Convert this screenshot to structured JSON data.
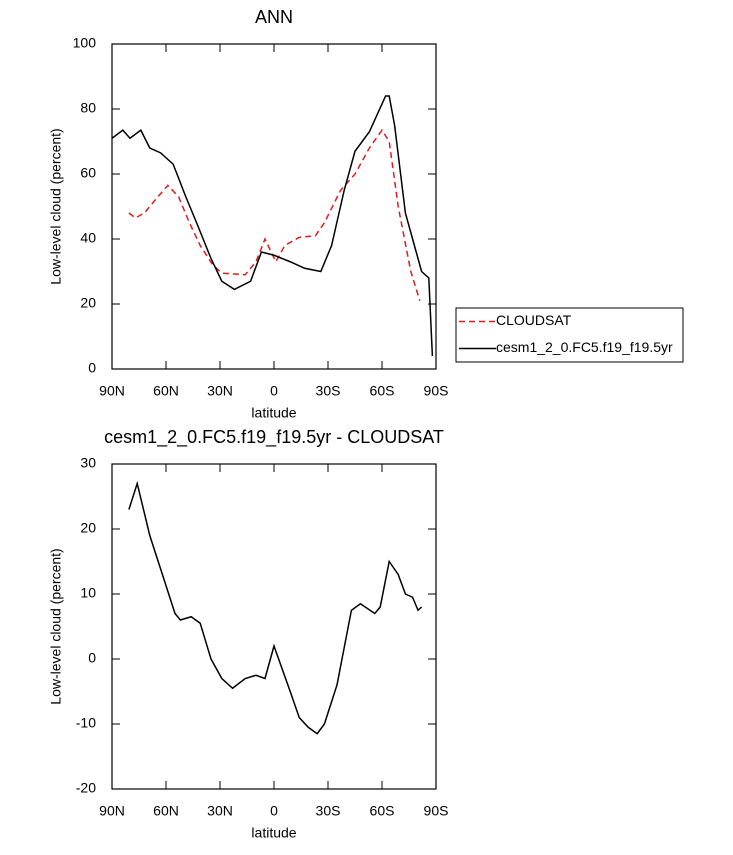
{
  "chart_data": [
    {
      "type": "line",
      "title": "ANN",
      "xlabel": "latitude",
      "ylabel": "Low-level cloud (percent)",
      "xlim": [
        90,
        -90
      ],
      "xticks": [
        {
          "value": 90,
          "label": "90N"
        },
        {
          "value": 60,
          "label": "60N"
        },
        {
          "value": 30,
          "label": "30N"
        },
        0,
        {
          "value": -30,
          "label": "30S"
        },
        {
          "value": -60,
          "label": "60S"
        },
        {
          "value": -90,
          "label": "90S"
        }
      ],
      "ylim": [
        0,
        100
      ],
      "yticks": [
        0,
        20,
        40,
        60,
        80,
        100
      ],
      "legend": "right",
      "series": [
        {
          "name": "CLOUDSAT",
          "color": "#e41a1c",
          "dash": "dashed",
          "x": [
            80.6,
            77,
            72,
            66,
            59,
            53,
            47,
            41,
            34,
            29,
            16,
            10,
            5,
            -1,
            -6,
            -14,
            -23,
            -28,
            -37,
            -45,
            -53,
            -60,
            -64,
            -69,
            -76,
            -81
          ],
          "values": [
            48,
            46.5,
            48,
            52,
            56.5,
            53,
            45,
            38,
            32,
            29.5,
            29,
            33,
            40,
            33,
            38,
            40.5,
            41,
            45,
            55,
            60,
            68,
            73.5,
            70,
            50,
            30,
            21
          ]
        },
        {
          "name": "cesm1_2_0.FC5.f19_f19.5yr",
          "color": "#000000",
          "dash": "solid",
          "x": [
            90,
            84,
            80,
            74,
            69,
            63,
            56,
            49,
            43,
            35,
            29,
            22,
            13,
            7,
            0,
            -9,
            -17,
            -26,
            -32,
            -39,
            -45,
            -53,
            -62,
            -64,
            -67,
            -73,
            -78,
            -82,
            -86,
            -88
          ],
          "values": [
            71,
            73.5,
            71,
            73.5,
            68,
            66.5,
            63,
            53,
            45,
            34,
            27,
            24.5,
            27,
            36,
            35,
            33,
            31,
            30,
            38,
            55,
            67,
            73,
            84,
            84,
            75,
            48,
            38,
            30,
            28,
            4
          ]
        }
      ]
    },
    {
      "type": "line",
      "title": "cesm1_2_0.FC5.f19_f19.5yr - CLOUDSAT",
      "xlabel": "latitude",
      "ylabel": "Low-level cloud (percent)",
      "xlim": [
        90,
        -90
      ],
      "xticks": [
        {
          "value": 90,
          "label": "90N"
        },
        {
          "value": 60,
          "label": "60N"
        },
        {
          "value": 30,
          "label": "30N"
        },
        0,
        {
          "value": -30,
          "label": "30S"
        },
        {
          "value": -60,
          "label": "60S"
        },
        {
          "value": -90,
          "label": "90S"
        }
      ],
      "ylim": [
        -20,
        30
      ],
      "yticks": [
        -20,
        -10,
        0,
        10,
        20,
        30
      ],
      "series": [
        {
          "color": "#000000",
          "dash": "solid",
          "x": [
            80.6,
            76,
            69,
            62,
            55,
            52,
            46,
            41,
            35,
            29,
            23,
            16,
            10,
            5,
            0,
            -9,
            -14,
            -19,
            -24,
            -28,
            -35,
            -43,
            -48,
            -56,
            -59,
            -64,
            -69,
            -73,
            -77,
            -80,
            -82
          ],
          "values": [
            23,
            27,
            19,
            13,
            7,
            6,
            6.5,
            5.5,
            0,
            -3,
            -4.5,
            -3,
            -2.5,
            -3,
            2,
            -5,
            -9,
            -10.5,
            -11.5,
            -10,
            -4,
            7.5,
            8.5,
            7,
            8,
            15,
            13,
            10,
            9.5,
            7.5,
            8
          ]
        }
      ]
    }
  ]
}
